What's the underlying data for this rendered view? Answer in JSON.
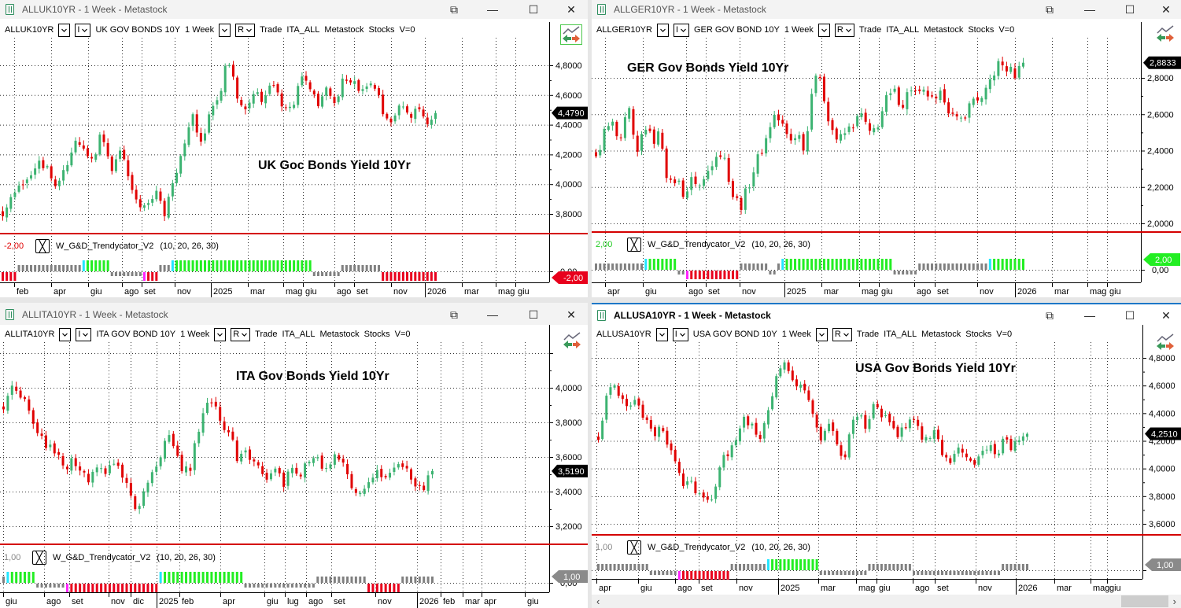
{
  "colors": {
    "up": "#3cb371",
    "down": "#e00000",
    "gray": "#808080",
    "green": "#22ee22",
    "red": "#e8001c",
    "cyan": "#22e6ff",
    "magenta": "#ff22ff",
    "redline": "#d40000"
  },
  "panels": [
    {
      "id": "uk",
      "window_title": "ALLUK10YR - 1 Week - Metastock",
      "toolbar": {
        "symbol": "ALLUK10YR",
        "opt2": "I",
        "name": "UK GOV BONDS 10Y",
        "period": "1 Week",
        "opt4": "R",
        "mode": "Trade",
        "list": "ITA_ALL",
        "source": "Metastock",
        "type": "Stocks",
        "v": "V=0"
      },
      "chart_title": "UK Goc Bonds Yield 10Yr",
      "last_price": "4,4790",
      "y_labels": [
        "3,8000",
        "4,0000",
        "4,2000",
        "4,4000",
        "4,6000",
        "4,8000"
      ],
      "x_labels": [
        "feb",
        "apr",
        "giu",
        "ago",
        "set",
        "nov",
        "2025",
        "mar",
        "mag",
        "giu",
        "ago",
        "set",
        "nov",
        "2026",
        "mar",
        "mag",
        "giu"
      ],
      "indicator": {
        "value": "-2,00",
        "value_color": "#e00000",
        "name": "W_G&D_Trendycator_V2",
        "params": "(10,  20,  26,  30)",
        "tag": "-2,00",
        "tag_color": "#e8001c",
        "zero_label": "0,00",
        "segments": [
          [
            "red",
            "lo",
            4
          ],
          [
            "gray",
            "up",
            16
          ],
          [
            "cyan",
            "hi",
            1
          ],
          [
            "green",
            "hi",
            6
          ],
          [
            "gray",
            "down",
            8
          ],
          [
            "magenta",
            "lo",
            1
          ],
          [
            "red",
            "lo",
            3
          ],
          [
            "gray",
            "up",
            3
          ],
          [
            "cyan",
            "hi",
            1
          ],
          [
            "green",
            "hi",
            34
          ],
          [
            "gray",
            "down",
            7
          ],
          [
            "gray",
            "up",
            10
          ],
          [
            "red",
            "lo",
            14
          ]
        ]
      },
      "closes": [
        3.82,
        3.9,
        3.98,
        4.05,
        4.18,
        4.1,
        3.97,
        4.1,
        4.28,
        4.22,
        4.18,
        4.34,
        4.1,
        4.23,
        4.05,
        3.84,
        3.9,
        3.95,
        3.81,
        4.02,
        4.23,
        4.47,
        4.26,
        4.5,
        4.6,
        4.85,
        4.58,
        4.47,
        4.63,
        4.55,
        4.68,
        4.55,
        4.5,
        4.71,
        4.66,
        4.52,
        4.63,
        4.55,
        4.74,
        4.66,
        4.63,
        4.71,
        4.52,
        4.42,
        4.55,
        4.45,
        4.52,
        4.4,
        4.479
      ]
    },
    {
      "id": "ger",
      "window_title": "ALLGER10YR - 1 Week - Metastock",
      "toolbar": {
        "symbol": "ALLGER10YR",
        "opt2": "I",
        "name": "GER GOV BOND 10Y",
        "period": "1 Week",
        "opt4": "R",
        "mode": "Trade",
        "list": "ITA_ALL",
        "source": "Metastock",
        "type": "Stocks",
        "v": "V=0"
      },
      "chart_title": "GER Gov Bonds Yield 10Yr",
      "last_price": "2,8833",
      "y_labels": [
        "2,0000",
        "2,2000",
        "2,4000",
        "2,6000",
        "2,8000"
      ],
      "x_labels": [
        "apr",
        "giu",
        "ago",
        "set",
        "nov",
        "2025",
        "mar",
        "mag",
        "giu",
        "ago",
        "set",
        "nov",
        "2026",
        "mar",
        "mag",
        "giu"
      ],
      "indicator": {
        "value": "2,00",
        "value_color": "#22cc22",
        "name": "W_G&D_Trendycator_V2",
        "params": "(10,  20,  26,  30)",
        "tag": "2,00",
        "tag_color": "#22ee22",
        "zero_label": "0,00",
        "segments": [
          [
            "gray",
            "up",
            12
          ],
          [
            "cyan",
            "hi",
            1
          ],
          [
            "green",
            "hi",
            7
          ],
          [
            "gray",
            "down",
            2
          ],
          [
            "magenta",
            "lo",
            1
          ],
          [
            "red",
            "lo",
            12
          ],
          [
            "gray",
            "up",
            7
          ],
          [
            "gray",
            "down",
            2
          ],
          [
            "gray",
            "up",
            1
          ],
          [
            "cyan",
            "hi",
            1
          ],
          [
            "green",
            "hi",
            26
          ],
          [
            "gray",
            "down",
            6
          ],
          [
            "gray",
            "up",
            17
          ],
          [
            "cyan",
            "hi",
            1
          ],
          [
            "green",
            "hi",
            8
          ]
        ]
      },
      "closes": [
        2.35,
        2.5,
        2.55,
        2.42,
        2.65,
        2.35,
        2.55,
        2.45,
        2.5,
        2.2,
        2.25,
        2.15,
        2.25,
        2.2,
        2.3,
        2.4,
        2.35,
        2.15,
        2.1,
        2.22,
        2.35,
        2.45,
        2.6,
        2.55,
        2.45,
        2.5,
        2.4,
        2.85,
        2.75,
        2.55,
        2.45,
        2.5,
        2.55,
        2.6,
        2.48,
        2.55,
        2.68,
        2.72,
        2.65,
        2.75,
        2.7,
        2.72,
        2.65,
        2.72,
        2.6,
        2.55,
        2.62,
        2.7,
        2.67,
        2.8,
        2.88,
        2.85,
        2.82,
        2.8833
      ]
    },
    {
      "id": "ita",
      "window_title": "ALLITA10YR - 1 Week - Metastock",
      "toolbar": {
        "symbol": "ALLITA10YR",
        "opt2": "I",
        "name": "ITA GOV BOND 10Y",
        "period": "1 Week",
        "opt4": "R",
        "mode": "Trade",
        "list": "ITA_ALL",
        "source": "Metastock",
        "type": "Stocks",
        "v": "V=0"
      },
      "chart_title": "ITA Gov Bonds Yield 10Yr",
      "last_price": "3,5190",
      "y_labels": [
        "3,2000",
        "3,4000",
        "3,6000",
        "3,8000",
        "4,0000"
      ],
      "x_labels": [
        "giu",
        "ago",
        "set",
        "nov",
        "dic",
        "2025",
        "feb",
        "apr",
        "giu",
        "lug",
        "ago",
        "set",
        "nov",
        "2026",
        "feb",
        "mar",
        "apr",
        "giu"
      ],
      "indicator": {
        "value": "1,00",
        "value_color": "#888888",
        "name": "W_G&D_Trendycator_V2",
        "params": "(10,  20,  26,  30)",
        "tag": "1,00",
        "tag_color": "#8a8a8a",
        "zero_label": "0,00",
        "segments": [
          [
            "gray",
            "up",
            1
          ],
          [
            "cyan",
            "hi",
            1
          ],
          [
            "green",
            "hi",
            6
          ],
          [
            "gray",
            "down",
            7
          ],
          [
            "magenta",
            "lo",
            1
          ],
          [
            "red",
            "lo",
            21
          ],
          [
            "cyan",
            "hi",
            1
          ],
          [
            "green",
            "hi",
            19
          ],
          [
            "gray",
            "down",
            17
          ],
          [
            "gray",
            "up",
            12
          ],
          [
            "red",
            "lo",
            8
          ],
          [
            "gray",
            "up",
            8
          ]
        ]
      },
      "closes": [
        3.9,
        4.0,
        3.95,
        3.9,
        3.75,
        3.7,
        3.65,
        3.6,
        3.55,
        3.6,
        3.5,
        3.45,
        3.55,
        3.5,
        3.6,
        3.5,
        3.45,
        3.25,
        3.4,
        3.5,
        3.6,
        3.75,
        3.65,
        3.5,
        3.55,
        3.75,
        3.95,
        3.9,
        3.8,
        3.72,
        3.6,
        3.62,
        3.6,
        3.5,
        3.48,
        3.55,
        3.45,
        3.55,
        3.5,
        3.58,
        3.6,
        3.55,
        3.58,
        3.6,
        3.5,
        3.4,
        3.42,
        3.45,
        3.5,
        3.48,
        3.55,
        3.58,
        3.5,
        3.45,
        3.42,
        3.519
      ]
    },
    {
      "id": "usa",
      "window_title": "ALLUSA10YR - 1 Week - Metastock",
      "toolbar": {
        "symbol": "ALLUSA10YR",
        "opt2": "I",
        "name": "USA GOV BOND 10Y",
        "period": "1 Week",
        "opt4": "R",
        "mode": "Trade",
        "list": "ITA_ALL",
        "source": "Metastock",
        "type": "Stocks",
        "v": "V=0"
      },
      "chart_title": "USA Gov Bonds Yield 10Yr",
      "last_price": "4,2510",
      "y_labels": [
        "3,6000",
        "3,8000",
        "4,0000",
        "4,2000",
        "4,4000",
        "4,6000",
        "4,8000"
      ],
      "x_labels": [
        "apr",
        "giu",
        "ago",
        "set",
        "nov",
        "2025",
        "mar",
        "mag",
        "giu",
        "ago",
        "set",
        "nov",
        "2026",
        "mar",
        "mag",
        "giu"
      ],
      "indicator": {
        "value": "1,00",
        "value_color": "#888888",
        "name": "W_G&D_Trendycator_V2",
        "params": "(10,  20,  26,  30)",
        "tag": "1,00",
        "tag_color": "#8a8a8a",
        "segments": [
          [
            "gray",
            "up",
            13
          ],
          [
            "gray",
            "down",
            7
          ],
          [
            "magenta",
            "lo",
            1
          ],
          [
            "red",
            "lo",
            12
          ],
          [
            "gray",
            "up",
            9
          ],
          [
            "cyan",
            "hi",
            1
          ],
          [
            "green",
            "hi",
            12
          ],
          [
            "gray",
            "down",
            12
          ],
          [
            "gray",
            "up",
            11
          ],
          [
            "gray",
            "down",
            22
          ],
          [
            "gray",
            "up",
            7
          ]
        ]
      },
      "closes": [
        4.2,
        4.5,
        4.65,
        4.5,
        4.45,
        4.5,
        4.35,
        4.25,
        4.3,
        4.2,
        4.05,
        3.85,
        3.9,
        3.8,
        3.75,
        3.8,
        4.05,
        4.1,
        4.2,
        4.4,
        4.3,
        4.2,
        4.4,
        4.6,
        4.75,
        4.7,
        4.6,
        4.55,
        4.4,
        4.2,
        4.3,
        4.25,
        4.0,
        4.3,
        4.4,
        4.3,
        4.5,
        4.4,
        4.35,
        4.25,
        4.3,
        4.35,
        4.25,
        4.2,
        4.3,
        4.1,
        4.05,
        4.15,
        4.1,
        4.0,
        4.1,
        4.15,
        4.1,
        4.2,
        4.15,
        4.2,
        4.251
      ],
      "scrollbar": {
        "left": "‹",
        "right": "›"
      }
    }
  ]
}
